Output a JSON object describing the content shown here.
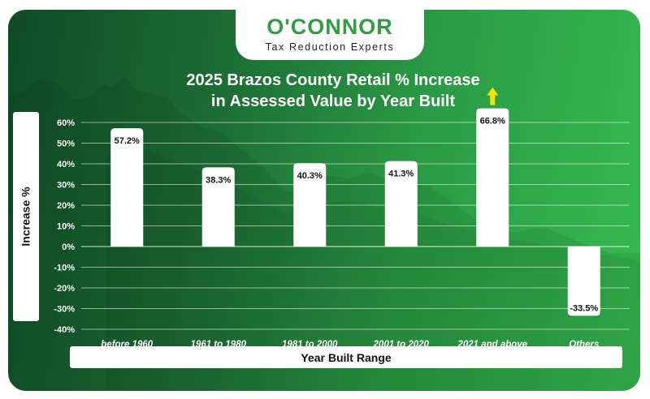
{
  "brand": {
    "name": "O'CONNOR",
    "tagline": "Tax Reduction Experts"
  },
  "chart_data": {
    "type": "bar",
    "title": "2025 Brazos County Retail % Increase in Assessed Value by Year Built",
    "title_lines": [
      "2025 Brazos County Retail % Increase",
      "in Assessed Value by Year Built"
    ],
    "xlabel": "Year Built Range",
    "ylabel": "Increase %",
    "categories": [
      "before 1960",
      "1961 to 1980",
      "1981 to 2000",
      "2001 to 2020",
      "2021 and above",
      "Others"
    ],
    "values": [
      57.2,
      38.3,
      40.3,
      41.3,
      66.8,
      -33.5
    ],
    "data_labels": [
      "57.2%",
      "38.3%",
      "40.3%",
      "41.3%",
      "66.8%",
      "-33.5%"
    ],
    "yticks": [
      60,
      50,
      40,
      30,
      20,
      10,
      0,
      -10,
      -20,
      -30,
      -40
    ],
    "ytick_labels": [
      "60%",
      "50%",
      "40%",
      "30%",
      "20%",
      "10%",
      "0%",
      "-10%",
      "-20%",
      "-30%",
      "-40%"
    ],
    "ylim": [
      -40,
      60
    ],
    "grid": true,
    "overflow_arrow_category": "2021 and above",
    "colors": {
      "bar": "#ffffff",
      "grid": "#ffffff",
      "arrow": "#f2e400",
      "text_dark": "#111111"
    }
  }
}
